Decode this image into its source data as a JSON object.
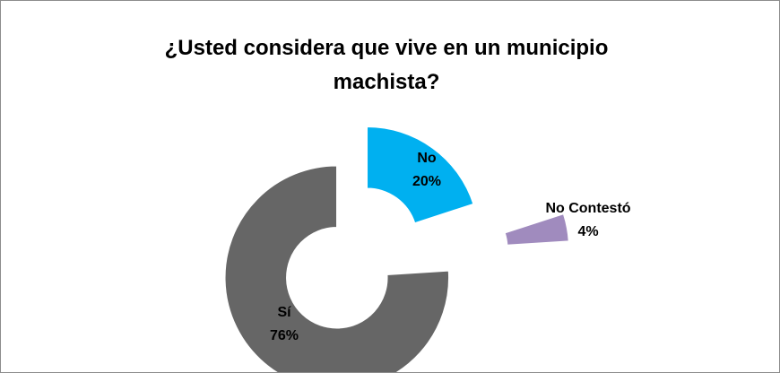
{
  "chart_data": {
    "type": "pie",
    "style": "exploded donut",
    "title": "¿Usted considera que vive en un municipio machista?",
    "slices": [
      {
        "label": "No",
        "value": 20,
        "percent_label": "20%",
        "color": "#00b0f0"
      },
      {
        "label": "No Contestó",
        "value": 4,
        "percent_label": "4%",
        "color": "#a08bbe"
      },
      {
        "label": "Sí",
        "value": 76,
        "percent_label": "76%",
        "color": "#666666"
      }
    ],
    "legend": "none",
    "data_labels": "category and percent"
  }
}
